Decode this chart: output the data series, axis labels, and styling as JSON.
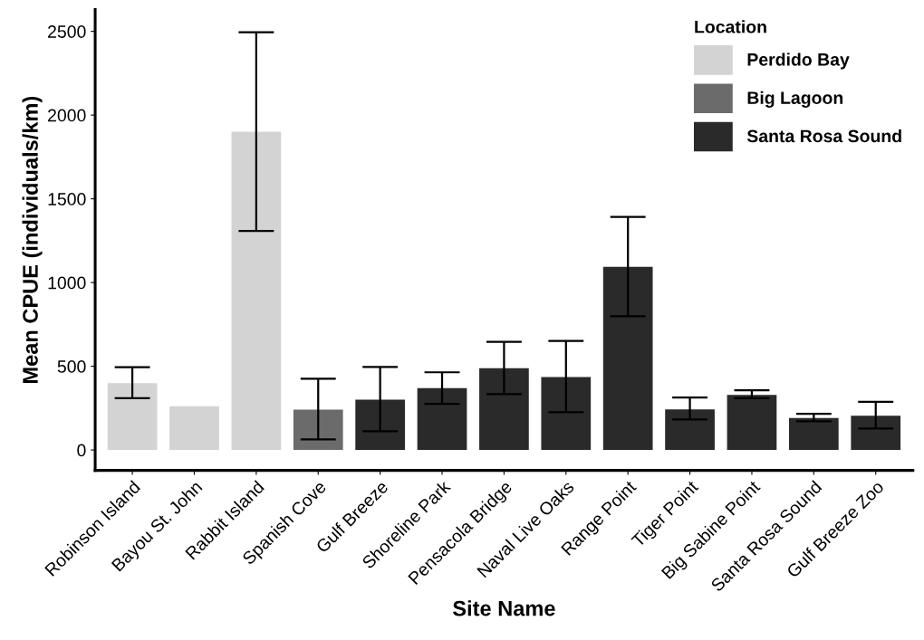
{
  "chart_data": {
    "type": "bar",
    "xlabel": "Site Name",
    "ylabel": "Mean CPUE (individuals/km)",
    "legend_title": "Location",
    "legend": "top right",
    "categories": [
      "Robinson Island",
      "Bayou St. John",
      "Rabbit Island",
      "Spanish Cove",
      "Gulf Breeze",
      "Shoreline Park",
      "Pensacola Bridge",
      "Naval Live Oaks",
      "Range Point",
      "Tiger Point",
      "Big Sabine Point",
      "Santa Rosa Sound",
      "Gulf Breeze Zoo"
    ],
    "series": [
      {
        "name": "Perdido Bay",
        "color": "#d3d3d3",
        "values": [
          399,
          261,
          1901,
          null,
          null,
          null,
          null,
          null,
          null,
          null,
          null,
          null,
          null
        ],
        "errors": [
          [
            309,
            495
          ],
          null,
          [
            1308,
            2495
          ],
          null,
          null,
          null,
          null,
          null,
          null,
          null,
          null,
          null,
          null
        ]
      },
      {
        "name": "Big Lagoon",
        "color": "#6b6b6b",
        "values": [
          null,
          null,
          null,
          241,
          null,
          null,
          null,
          null,
          null,
          null,
          null,
          null,
          null
        ],
        "errors": [
          null,
          null,
          null,
          [
            63,
            426
          ],
          null,
          null,
          null,
          null,
          null,
          null,
          null,
          null,
          null
        ]
      },
      {
        "name": "Santa Rosa Sound",
        "color": "#2a2a2a",
        "values": [
          null,
          null,
          null,
          null,
          300,
          369,
          489,
          435,
          1094,
          243,
          329,
          191,
          205
        ],
        "errors": [
          null,
          null,
          null,
          null,
          [
            112,
            496
          ],
          [
            275,
            464
          ],
          [
            333,
            646
          ],
          [
            225,
            651
          ],
          [
            799,
            1392
          ],
          [
            182,
            313
          ],
          [
            309,
            356
          ],
          [
            171,
            216
          ],
          [
            128,
            288
          ]
        ]
      }
    ],
    "ylim": [
      -122,
      2630
    ],
    "yticks": [
      0,
      500,
      1000,
      1500,
      2000,
      2500
    ],
    "grid": false
  }
}
